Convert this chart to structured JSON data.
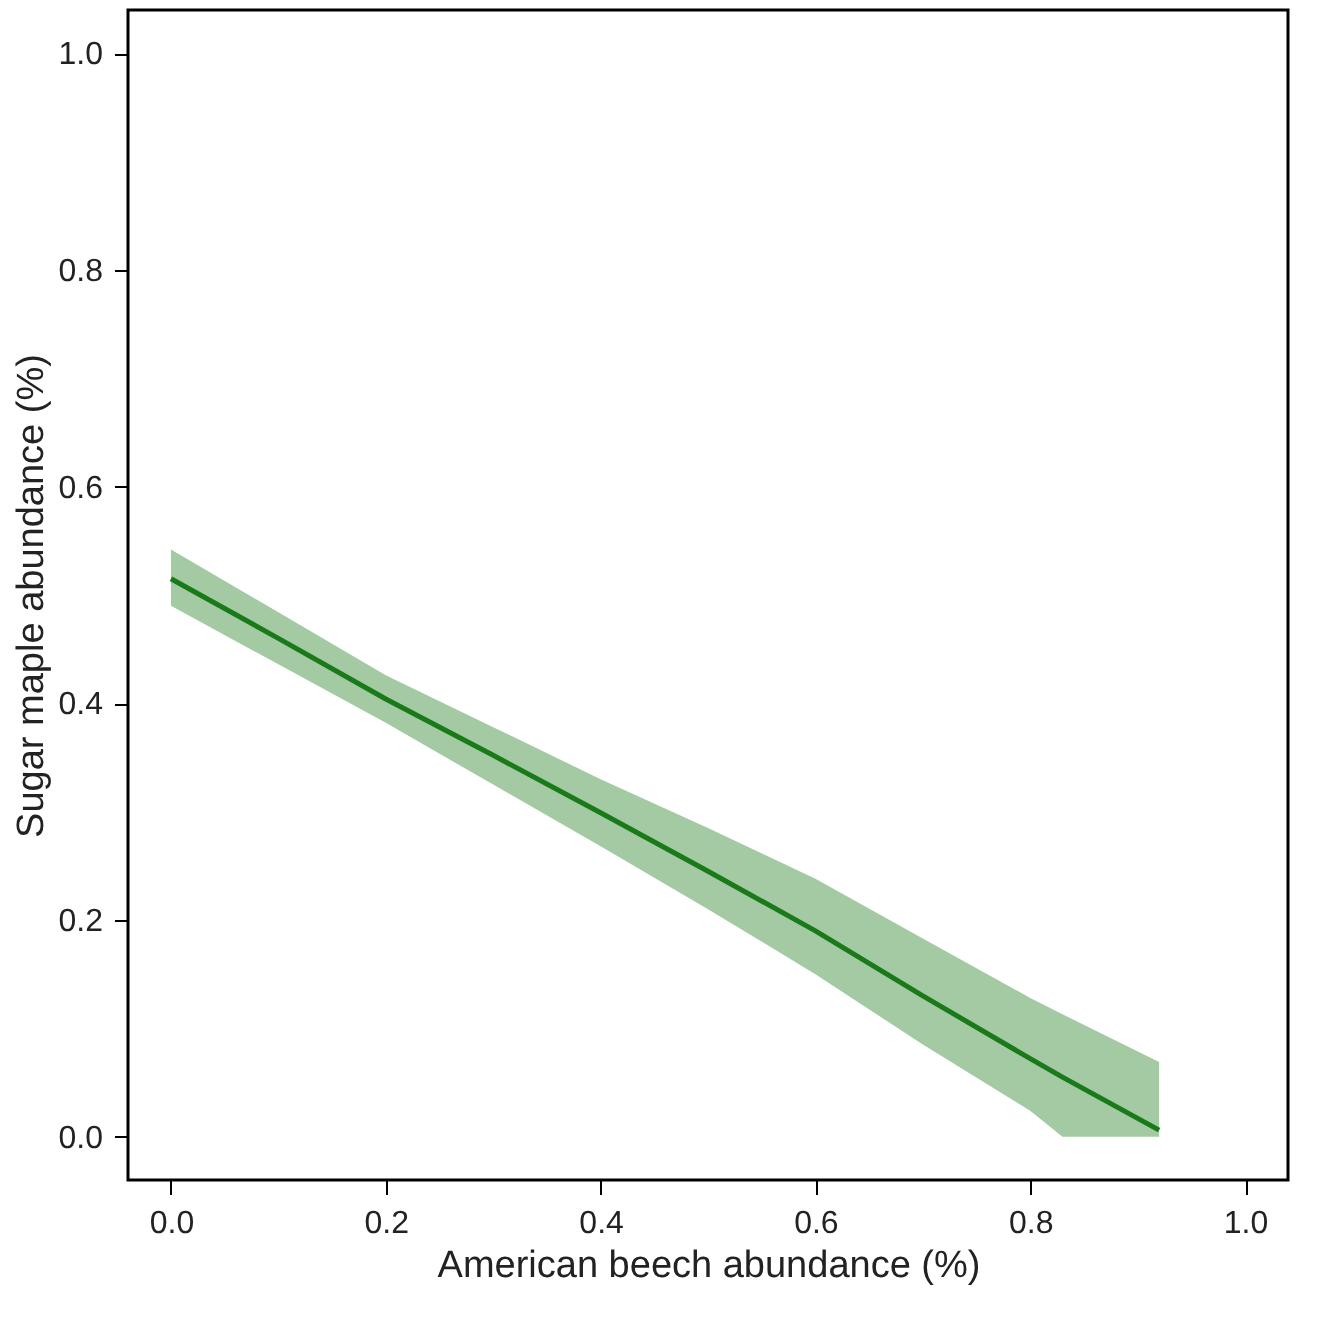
{
  "chart_data": {
    "type": "line",
    "xlabel": "American beech abundance (%)",
    "ylabel": "Sugar maple abundance (%)",
    "x": [
      0,
      0.1,
      0.2,
      0.3,
      0.4,
      0.5,
      0.6,
      0.7,
      0.8,
      0.83,
      0.92
    ],
    "series": [
      {
        "color": "#1a7a1a",
        "values": [
          0.515,
          0.46,
          0.404,
          0.352,
          0.299,
          0.245,
          0.19,
          0.13,
          0.072,
          0.055,
          0.006
        ],
        "upper": [
          0.542,
          0.484,
          0.426,
          0.378,
          0.33,
          0.285,
          0.238,
          0.183,
          0.128,
          0.113,
          0.069
        ],
        "lower": [
          0.49,
          0.436,
          0.382,
          0.325,
          0.268,
          0.21,
          0.15,
          0.085,
          0.024,
          0.0,
          0.0
        ]
      }
    ],
    "xlim": [
      -0.04,
      1.04
    ],
    "ylim": [
      -0.04,
      1.04
    ],
    "xticks": [
      {
        "value": 0,
        "label": "0.0"
      },
      {
        "value": 0.2,
        "label": "0.2"
      },
      {
        "value": 0.4,
        "label": "0.4"
      },
      {
        "value": 0.6,
        "label": "0.6"
      },
      {
        "value": 0.8,
        "label": "0.8"
      },
      {
        "value": 1,
        "label": "1.0"
      }
    ],
    "yticks": [
      {
        "value": 0,
        "label": "0.0"
      },
      {
        "value": 0.2,
        "label": "0.2"
      },
      {
        "value": 0.4,
        "label": "0.4"
      },
      {
        "value": 0.6,
        "label": "0.6"
      },
      {
        "value": 0.8,
        "label": "0.8"
      },
      {
        "value": 1,
        "label": "1.0"
      }
    ],
    "grid": false,
    "line_style": "solid",
    "marker": "none"
  }
}
